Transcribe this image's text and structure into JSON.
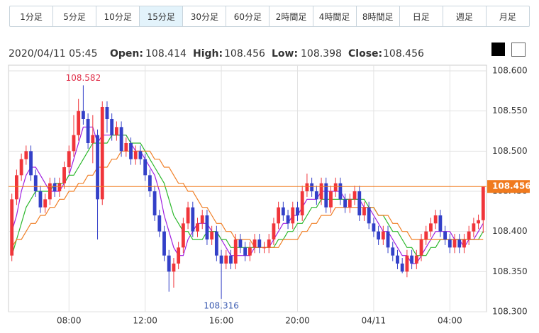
{
  "chart_data": {
    "type": "candlestick",
    "tabs": [
      "1分足",
      "5分足",
      "10分足",
      "15分足",
      "30分足",
      "60分足",
      "2時間足",
      "4時間足",
      "8時間足",
      "日足",
      "週足",
      "月足"
    ],
    "selected_tab": 3,
    "info": {
      "datetime": "2020/04/11 05:45",
      "open_label": "Open:",
      "open": 108.414,
      "high_label": "High:",
      "high": 108.456,
      "low_label": "Low:",
      "low": 108.398,
      "close_label": "Close:",
      "close": 108.456
    },
    "max_label": 108.582,
    "min_label": 108.316,
    "last_price": 108.456,
    "up_color": "#f0353a",
    "down_color": "#3340c8",
    "last_color": "#f07a1e",
    "xlim": [
      -0.7,
      99.7
    ],
    "xticks": [
      {
        "value": 12,
        "label": "08:00"
      },
      {
        "value": 28,
        "label": "12:00"
      },
      {
        "value": 44,
        "label": "16:00"
      },
      {
        "value": 60,
        "label": "20:00"
      },
      {
        "value": 76,
        "label": "04/11"
      },
      {
        "value": 92,
        "label": "04:00"
      }
    ],
    "ylim": [
      108.3,
      108.6
    ],
    "yticks": [
      {
        "value": 108.3,
        "label": "108.300"
      },
      {
        "value": 108.35,
        "label": "108.350"
      },
      {
        "value": 108.4,
        "label": "108.400"
      },
      {
        "value": 108.45,
        "label": "108.450"
      },
      {
        "value": 108.5,
        "label": "108.500"
      },
      {
        "value": 108.55,
        "label": "108.550"
      },
      {
        "value": 108.6,
        "label": "108.600"
      }
    ],
    "grid": true,
    "open": [
      108.37,
      108.44,
      108.47,
      108.49,
      108.5,
      108.47,
      108.45,
      108.43,
      108.44,
      108.46,
      108.45,
      108.46,
      108.48,
      108.5,
      108.52,
      108.55,
      108.54,
      108.51,
      108.52,
      108.44,
      108.555,
      108.54,
      108.52,
      108.53,
      108.5,
      108.51,
      108.49,
      108.5,
      108.49,
      108.47,
      108.45,
      108.42,
      108.4,
      108.37,
      108.35,
      108.36,
      108.38,
      108.41,
      108.43,
      108.4,
      108.41,
      108.42,
      108.39,
      108.4,
      108.37,
      108.36,
      108.37,
      108.36,
      108.39,
      108.38,
      108.37,
      108.38,
      108.39,
      108.38,
      108.38,
      108.39,
      108.41,
      108.43,
      108.42,
      108.41,
      108.43,
      108.42,
      108.45,
      108.46,
      108.45,
      108.44,
      108.46,
      108.43,
      108.45,
      108.46,
      108.44,
      108.43,
      108.44,
      108.45,
      108.42,
      108.43,
      108.41,
      108.4,
      108.39,
      108.4,
      108.38,
      108.37,
      108.36,
      108.35,
      108.37,
      108.36,
      108.37,
      108.39,
      108.4,
      108.41,
      108.42,
      108.4,
      108.39,
      108.38,
      108.39,
      108.38,
      108.39,
      108.4,
      108.41,
      108.414
    ],
    "high": [
      108.447,
      108.477,
      108.497,
      108.507,
      108.507,
      108.477,
      108.457,
      108.447,
      108.467,
      108.467,
      108.467,
      108.487,
      108.507,
      108.545,
      108.565,
      108.582,
      108.547,
      108.545,
      108.527,
      108.562,
      108.562,
      108.547,
      108.537,
      108.537,
      108.517,
      108.517,
      108.507,
      108.507,
      108.497,
      108.477,
      108.457,
      108.427,
      108.407,
      108.377,
      108.367,
      108.387,
      108.417,
      108.437,
      108.437,
      108.417,
      108.427,
      108.427,
      108.407,
      108.407,
      108.377,
      108.377,
      108.377,
      108.397,
      108.397,
      108.387,
      108.387,
      108.397,
      108.397,
      108.387,
      108.397,
      108.417,
      108.437,
      108.437,
      108.427,
      108.437,
      108.437,
      108.457,
      108.472,
      108.467,
      108.457,
      108.467,
      108.467,
      108.457,
      108.467,
      108.467,
      108.447,
      108.447,
      108.457,
      108.457,
      108.437,
      108.437,
      108.417,
      108.407,
      108.407,
      108.407,
      108.387,
      108.377,
      108.367,
      108.377,
      108.377,
      108.377,
      108.397,
      108.407,
      108.417,
      108.427,
      108.427,
      108.407,
      108.397,
      108.397,
      108.397,
      108.397,
      108.407,
      108.417,
      108.421,
      108.456
    ],
    "low": [
      108.363,
      108.433,
      108.463,
      108.483,
      108.463,
      108.443,
      108.423,
      108.423,
      108.433,
      108.443,
      108.443,
      108.453,
      108.473,
      108.493,
      108.513,
      108.533,
      108.503,
      108.485,
      108.39,
      108.433,
      108.523,
      108.513,
      108.513,
      108.493,
      108.493,
      108.483,
      108.483,
      108.483,
      108.463,
      108.443,
      108.413,
      108.393,
      108.363,
      108.325,
      108.33,
      108.353,
      108.373,
      108.403,
      108.393,
      108.393,
      108.403,
      108.383,
      108.383,
      108.363,
      108.316,
      108.353,
      108.353,
      108.353,
      108.373,
      108.363,
      108.363,
      108.373,
      108.373,
      108.373,
      108.373,
      108.383,
      108.403,
      108.413,
      108.403,
      108.403,
      108.413,
      108.413,
      108.443,
      108.443,
      108.433,
      108.433,
      108.423,
      108.423,
      108.443,
      108.433,
      108.423,
      108.423,
      108.433,
      108.413,
      108.413,
      108.403,
      108.393,
      108.383,
      108.383,
      108.373,
      108.363,
      108.353,
      108.348,
      108.343,
      108.353,
      108.353,
      108.363,
      108.383,
      108.393,
      108.403,
      108.393,
      108.383,
      108.373,
      108.373,
      108.373,
      108.373,
      108.383,
      108.393,
      108.403,
      108.398
    ],
    "close": [
      108.44,
      108.47,
      108.49,
      108.5,
      108.47,
      108.45,
      108.43,
      108.44,
      108.46,
      108.45,
      108.46,
      108.48,
      108.5,
      108.52,
      108.55,
      108.54,
      108.51,
      108.52,
      108.44,
      108.555,
      108.54,
      108.52,
      108.53,
      108.5,
      108.51,
      108.49,
      108.5,
      108.49,
      108.47,
      108.45,
      108.42,
      108.4,
      108.37,
      108.35,
      108.36,
      108.38,
      108.41,
      108.43,
      108.4,
      108.41,
      108.42,
      108.39,
      108.4,
      108.37,
      108.36,
      108.37,
      108.36,
      108.39,
      108.38,
      108.37,
      108.38,
      108.39,
      108.38,
      108.38,
      108.39,
      108.41,
      108.43,
      108.42,
      108.41,
      108.43,
      108.42,
      108.45,
      108.46,
      108.45,
      108.44,
      108.46,
      108.43,
      108.45,
      108.46,
      108.44,
      108.43,
      108.44,
      108.45,
      108.42,
      108.43,
      108.41,
      108.4,
      108.39,
      108.4,
      108.38,
      108.37,
      108.36,
      108.35,
      108.37,
      108.36,
      108.37,
      108.39,
      108.4,
      108.41,
      108.42,
      108.4,
      108.39,
      108.38,
      108.39,
      108.38,
      108.39,
      108.4,
      108.41,
      108.414,
      108.456
    ],
    "series": [
      {
        "color": "#a020e0",
        "values": [
          108.4,
          108.42,
          108.45,
          108.47,
          108.48,
          108.48,
          108.47,
          108.46,
          108.45,
          108.45,
          108.45,
          108.46,
          108.47,
          108.49,
          108.51,
          108.53,
          108.53,
          108.53,
          108.51,
          108.52,
          108.52,
          108.52,
          108.52,
          108.52,
          108.52,
          108.51,
          108.5,
          108.5,
          108.49,
          108.48,
          108.47,
          108.45,
          108.42,
          108.4,
          108.38,
          108.37,
          108.37,
          108.39,
          108.4,
          108.41,
          108.41,
          108.41,
          108.4,
          108.4,
          108.39,
          108.38,
          108.37,
          108.37,
          108.37,
          108.37,
          108.37,
          108.38,
          108.38,
          108.38,
          108.38,
          108.39,
          108.4,
          108.41,
          108.41,
          108.42,
          108.42,
          108.43,
          108.44,
          108.44,
          108.44,
          108.45,
          108.45,
          108.45,
          108.45,
          108.45,
          108.44,
          108.44,
          108.44,
          108.44,
          108.43,
          108.43,
          108.42,
          108.41,
          108.4,
          108.4,
          108.39,
          108.38,
          108.37,
          108.37,
          108.36,
          108.36,
          108.37,
          108.38,
          108.39,
          108.4,
          108.4,
          108.4,
          108.4,
          108.39,
          108.39,
          108.38,
          108.39,
          108.39,
          108.4,
          108.41
        ]
      },
      {
        "color": "#2cb82c",
        "values": [
          108.37,
          108.39,
          108.41,
          108.43,
          108.44,
          108.45,
          108.45,
          108.45,
          108.45,
          108.46,
          108.46,
          108.46,
          108.47,
          108.47,
          108.48,
          108.49,
          108.5,
          108.51,
          108.51,
          108.51,
          108.51,
          108.52,
          108.52,
          108.52,
          108.52,
          108.51,
          108.51,
          108.51,
          108.5,
          108.49,
          108.48,
          108.47,
          108.46,
          108.44,
          108.42,
          108.41,
          108.4,
          108.4,
          108.39,
          108.39,
          108.39,
          108.4,
          108.4,
          108.4,
          108.39,
          108.39,
          108.38,
          108.38,
          108.38,
          108.38,
          108.38,
          108.38,
          108.38,
          108.38,
          108.38,
          108.38,
          108.39,
          108.39,
          108.4,
          108.4,
          108.41,
          108.41,
          108.42,
          108.43,
          108.43,
          108.44,
          108.44,
          108.44,
          108.44,
          108.44,
          108.44,
          108.44,
          108.44,
          108.44,
          108.44,
          108.43,
          108.43,
          108.42,
          108.42,
          108.41,
          108.4,
          108.4,
          108.39,
          108.38,
          108.38,
          108.37,
          108.37,
          108.37,
          108.38,
          108.38,
          108.39,
          108.39,
          108.39,
          108.39,
          108.39,
          108.39,
          108.39,
          108.39,
          108.39,
          108.4
        ]
      },
      {
        "color": "#f07f26",
        "values": [
          108.38,
          108.39,
          108.39,
          108.4,
          108.41,
          108.41,
          108.42,
          108.42,
          108.43,
          108.43,
          108.44,
          108.44,
          108.45,
          108.45,
          108.46,
          108.46,
          108.47,
          108.47,
          108.48,
          108.48,
          108.48,
          108.49,
          108.49,
          108.5,
          108.5,
          108.5,
          108.5,
          108.5,
          108.5,
          108.5,
          108.49,
          108.49,
          108.48,
          108.48,
          108.47,
          108.46,
          108.46,
          108.45,
          108.45,
          108.44,
          108.43,
          108.43,
          108.42,
          108.41,
          108.41,
          108.4,
          108.4,
          108.39,
          108.39,
          108.39,
          108.39,
          108.38,
          108.38,
          108.38,
          108.38,
          108.38,
          108.38,
          108.39,
          108.39,
          108.39,
          108.39,
          108.4,
          108.4,
          108.41,
          108.41,
          108.42,
          108.42,
          108.42,
          108.43,
          108.43,
          108.43,
          108.43,
          108.43,
          108.43,
          108.43,
          108.43,
          108.43,
          108.42,
          108.42,
          108.42,
          108.41,
          108.41,
          108.4,
          108.4,
          108.39,
          108.39,
          108.39,
          108.39,
          108.39,
          108.39,
          108.39,
          108.39,
          108.39,
          108.39,
          108.39,
          108.39,
          108.39,
          108.39,
          108.39,
          108.39
        ]
      }
    ]
  }
}
